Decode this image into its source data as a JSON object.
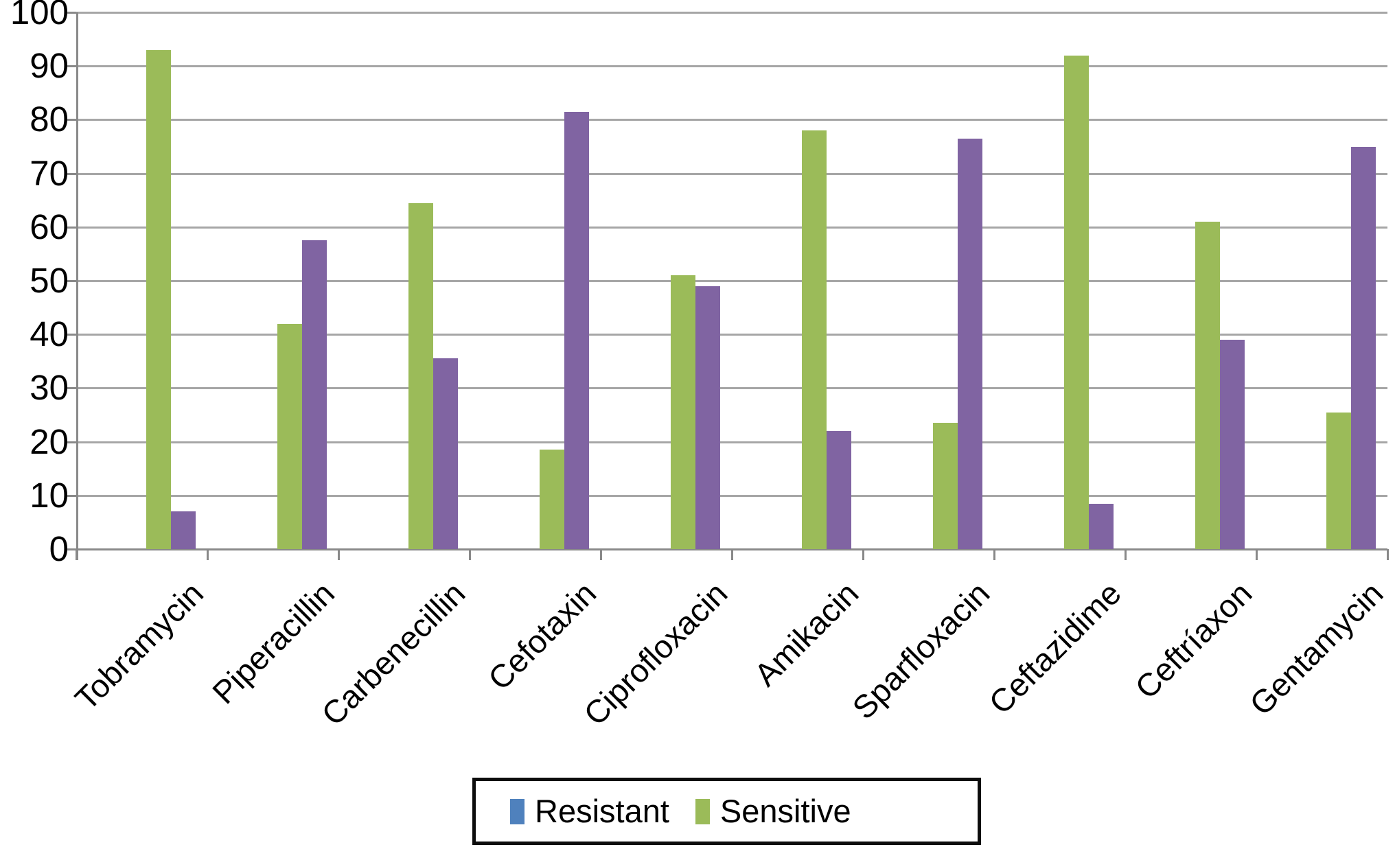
{
  "chart_data": {
    "type": "bar",
    "title": "",
    "xlabel": "",
    "ylabel": "",
    "categories": [
      "Tobramycin",
      "Piperacillin",
      "Carbenecillin",
      "Cefotaxin",
      "Ciprofloxacin",
      "Amikacin",
      "Sparfloxacin",
      "Ceftazidime",
      "Ceftríaxon",
      "Gentamycin"
    ],
    "series": [
      {
        "name": "Sensitive",
        "bar_color": "#9BBB59",
        "values": [
          93,
          42,
          64.5,
          18.5,
          51,
          78,
          23.5,
          92,
          61,
          25.5
        ]
      },
      {
        "name": "Resistant",
        "bar_color": "#8064A2",
        "values": [
          7,
          57.5,
          35.5,
          81.5,
          49,
          22,
          76.5,
          8.5,
          39,
          75
        ]
      }
    ],
    "ylim": [
      0,
      100
    ],
    "yticks": [
      0,
      10,
      20,
      30,
      40,
      50,
      60,
      70,
      80,
      90,
      100
    ],
    "grid": "horizontal",
    "legend": {
      "position": "bottom",
      "items": [
        {
          "label": "Resistant",
          "swatch_color": "#4F81BD"
        },
        {
          "label": "Sensitive",
          "swatch_color": "#9BBB59"
        }
      ]
    },
    "colors": {
      "gridline": "#A6A6A6",
      "axis": "#898989",
      "text": "#000000",
      "background": "#FFFFFF"
    }
  }
}
